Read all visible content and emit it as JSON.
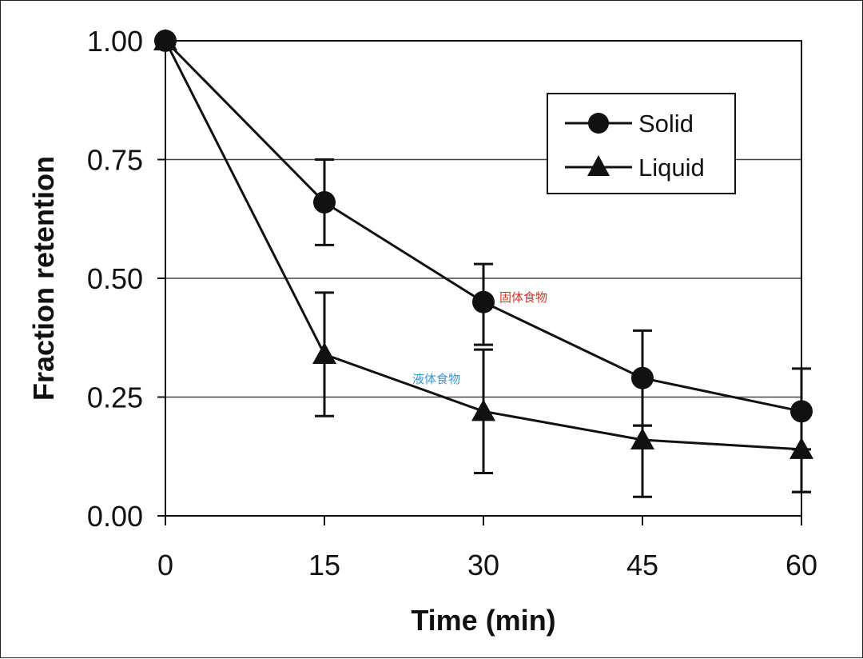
{
  "chart_data": {
    "type": "line",
    "title": "",
    "xlabel": "Time (min)",
    "ylabel": "Fraction retention",
    "x": [
      0,
      15,
      30,
      45,
      60
    ],
    "xticks": [
      "0",
      "15",
      "30",
      "45",
      "60"
    ],
    "yticks": [
      "0.00",
      "0.25",
      "0.50",
      "0.75",
      "1.00"
    ],
    "xlim": [
      0,
      60
    ],
    "ylim": [
      0,
      1
    ],
    "grid": "horizontal",
    "legend_position": "top-right",
    "series": [
      {
        "name": "Solid",
        "marker": "circle",
        "values": [
          1.0,
          0.66,
          0.45,
          0.29,
          0.22
        ],
        "err_upper": [
          1.0,
          0.75,
          0.53,
          0.39,
          0.31
        ],
        "err_lower": [
          1.0,
          0.57,
          0.36,
          0.19,
          0.05
        ]
      },
      {
        "name": "Liquid",
        "marker": "triangle",
        "values": [
          1.0,
          0.34,
          0.22,
          0.16,
          0.14
        ],
        "err_upper": [
          1.0,
          0.47,
          0.35,
          0.19,
          0.14
        ],
        "err_lower": [
          1.0,
          0.21,
          0.09,
          0.04,
          0.05
        ]
      }
    ],
    "annotations": [
      {
        "text": "固体食物",
        "x": 30,
        "y": 0.46,
        "color": "#d0352b",
        "series": "Solid"
      },
      {
        "text": "液体食物",
        "x": 27,
        "y": 0.29,
        "color": "#3a97d6",
        "series": "Liquid"
      }
    ]
  },
  "legend": {
    "items": [
      {
        "label": "Solid",
        "icon": "circle-marker"
      },
      {
        "label": "Liquid",
        "icon": "triangle-marker"
      }
    ]
  }
}
